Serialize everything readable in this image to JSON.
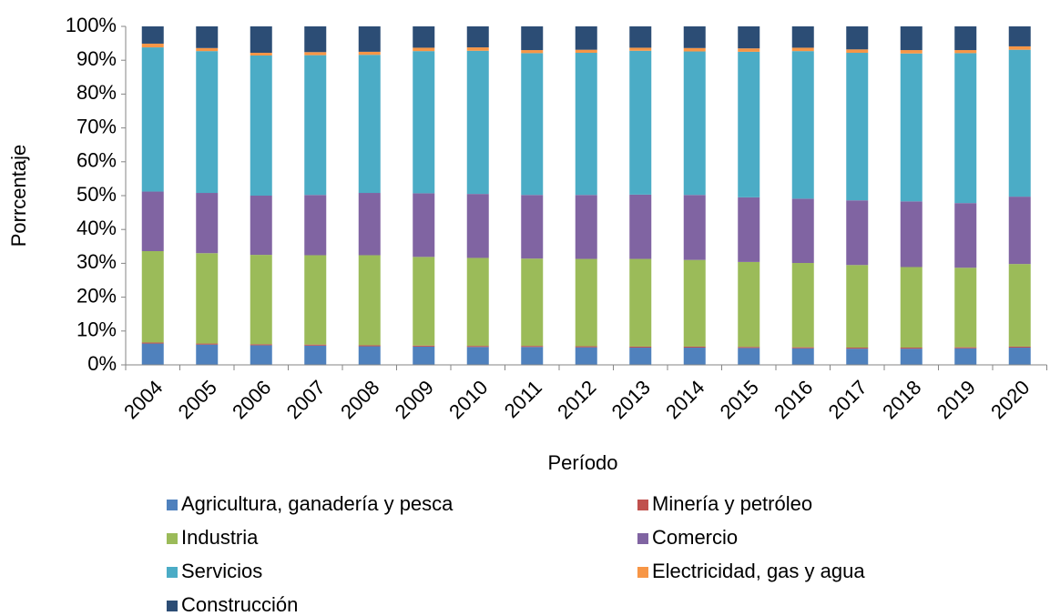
{
  "chart_data": {
    "type": "stacked_bar",
    "x_label": "Período",
    "y_label": "Porrcentaje",
    "categories": [
      "2004",
      "2005",
      "2006",
      "2007",
      "2008",
      "2009",
      "2010",
      "2011",
      "2012",
      "2013",
      "2014",
      "2015",
      "2016",
      "2017",
      "2018",
      "2019",
      "2020"
    ],
    "series": [
      {
        "name": "Agricultura, ganadería y pesca",
        "color": "#4f81bd",
        "values": [
          6.3,
          6.0,
          5.8,
          5.7,
          5.5,
          5.4,
          5.3,
          5.3,
          5.2,
          5.1,
          5.1,
          5.0,
          4.9,
          4.8,
          4.8,
          4.9,
          5.1
        ]
      },
      {
        "name": "Minería y petróleo",
        "color": "#c0504d",
        "values": [
          0.3,
          0.3,
          0.3,
          0.3,
          0.3,
          0.3,
          0.3,
          0.3,
          0.3,
          0.3,
          0.3,
          0.3,
          0.3,
          0.3,
          0.3,
          0.3,
          0.3
        ]
      },
      {
        "name": "Industria",
        "color": "#9bbb59",
        "values": [
          27.0,
          26.7,
          26.4,
          26.4,
          26.6,
          26.2,
          26.0,
          25.8,
          25.8,
          25.9,
          25.6,
          25.1,
          24.9,
          24.4,
          23.8,
          23.5,
          24.4
        ]
      },
      {
        "name": "Comercio",
        "color": "#8064a2",
        "values": [
          17.6,
          17.8,
          17.5,
          17.8,
          18.4,
          18.8,
          18.9,
          18.8,
          18.9,
          19.0,
          19.2,
          19.1,
          19.0,
          19.1,
          19.4,
          19.1,
          19.9
        ]
      },
      {
        "name": "Servicios",
        "color": "#4bacc6",
        "values": [
          42.6,
          41.9,
          41.4,
          41.3,
          40.8,
          42.0,
          42.3,
          41.9,
          42.0,
          42.5,
          42.4,
          43.0,
          43.6,
          43.6,
          43.7,
          44.3,
          43.4
        ]
      },
      {
        "name": "Electricidad, gas y agua",
        "color": "#f79646",
        "values": [
          1.1,
          0.9,
          0.8,
          0.9,
          0.9,
          1.0,
          1.0,
          0.9,
          0.9,
          0.9,
          1.0,
          1.0,
          1.0,
          1.0,
          1.0,
          0.9,
          1.0
        ]
      },
      {
        "name": "Construcción",
        "color": "#2c4d75",
        "values": [
          5.1,
          6.4,
          7.8,
          7.6,
          7.5,
          6.3,
          6.2,
          7.0,
          6.9,
          6.3,
          6.4,
          6.5,
          6.3,
          6.8,
          7.0,
          7.0,
          5.9
        ]
      }
    ],
    "ylim": [
      0,
      100
    ],
    "yticks": [
      {
        "value": 0,
        "label": "0%"
      },
      {
        "value": 10,
        "label": "10%"
      },
      {
        "value": 20,
        "label": "20%"
      },
      {
        "value": 30,
        "label": "30%"
      },
      {
        "value": 40,
        "label": "40%"
      },
      {
        "value": 50,
        "label": "50%"
      },
      {
        "value": 60,
        "label": "60%"
      },
      {
        "value": 70,
        "label": "70%"
      },
      {
        "value": 80,
        "label": "80%"
      },
      {
        "value": 90,
        "label": "90%"
      },
      {
        "value": 100,
        "label": "100%"
      }
    ],
    "grid": false
  }
}
